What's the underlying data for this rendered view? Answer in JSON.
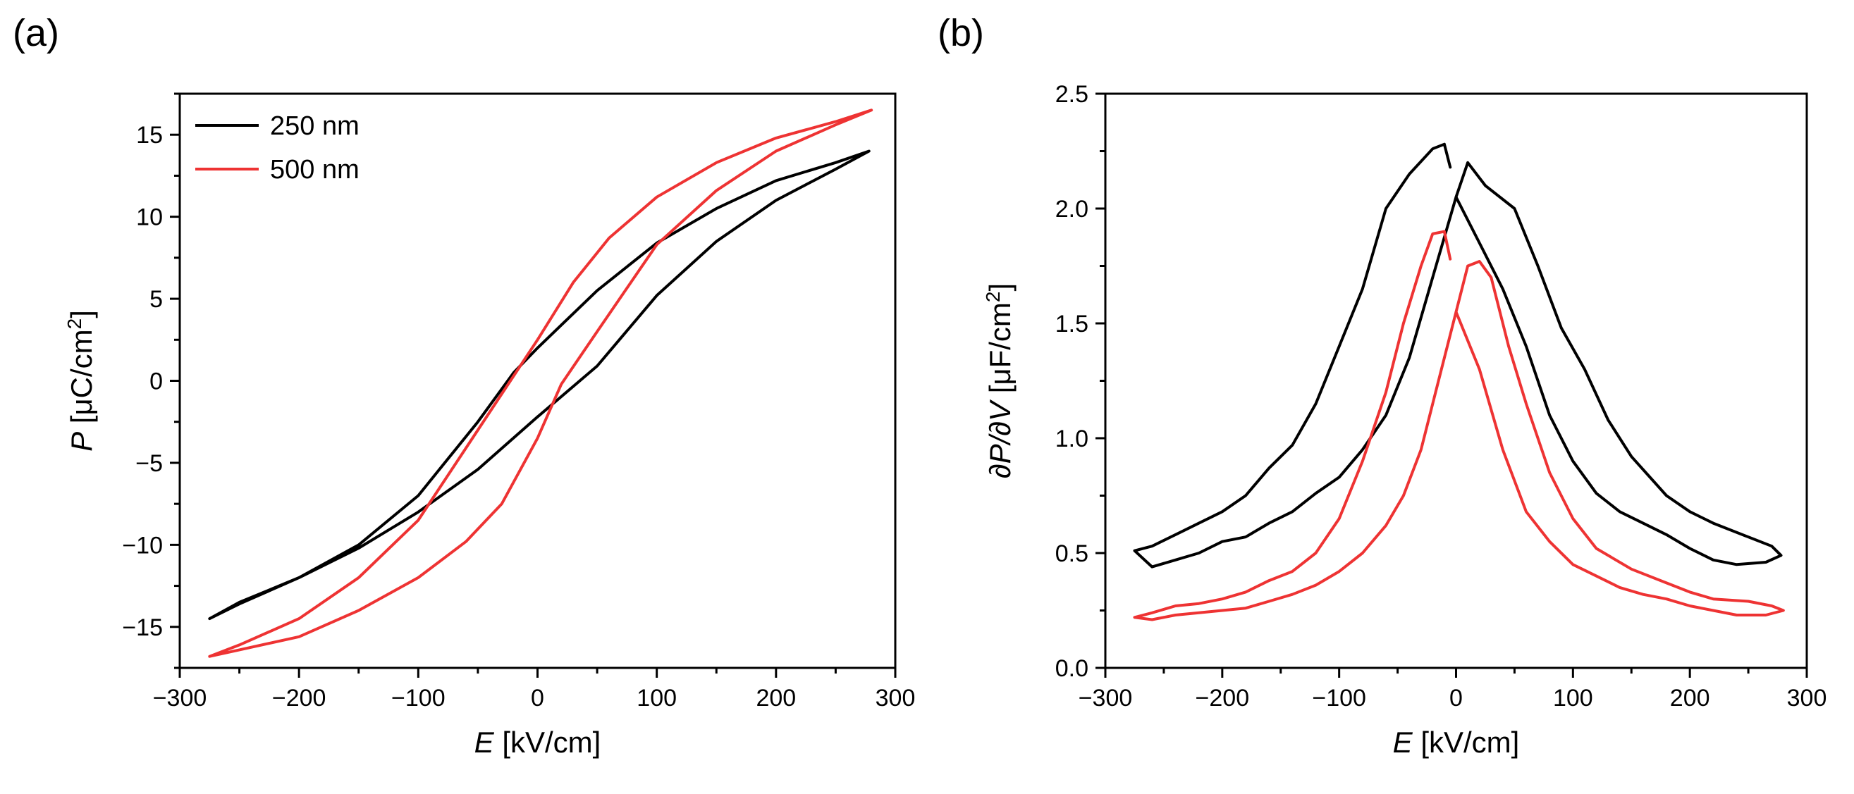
{
  "chart_data": [
    {
      "panel": "(a)",
      "type": "line",
      "xlabel_var": "E",
      "xlabel_unit": " [kV/cm]",
      "ylabel_var": "P",
      "ylabel_unit_pre": " [μC/cm",
      "ylabel_unit_sup": "2",
      "ylabel_unit_post": "]",
      "xlim": [
        -300,
        300
      ],
      "ylim": [
        -17.5,
        17.5
      ],
      "xticks": [
        -300,
        -200,
        -100,
        0,
        100,
        200,
        300
      ],
      "yticks": [
        -15,
        -10,
        -5,
        0,
        5,
        10,
        15
      ],
      "legend_position": "top-left",
      "series": [
        {
          "name": "250 nm",
          "color": "#000000",
          "x": [
            0,
            20,
            50,
            100,
            150,
            200,
            250,
            278,
            250,
            200,
            150,
            100,
            50,
            0,
            -50,
            -100,
            -150,
            -200,
            -250,
            -275,
            -250,
            -200,
            -150,
            -100,
            -50,
            -20,
            0
          ],
          "y": [
            2.0,
            3.4,
            5.5,
            8.4,
            10.5,
            12.2,
            13.3,
            14.0,
            12.9,
            11.0,
            8.5,
            5.2,
            0.9,
            -2.2,
            -5.4,
            -8.0,
            -10.2,
            -12.0,
            -13.6,
            -14.5,
            -13.5,
            -12.0,
            -10.0,
            -7.0,
            -2.5,
            0.5,
            2.0
          ]
        },
        {
          "name": "500 nm",
          "color": "#ee3333",
          "x": [
            0,
            30,
            60,
            100,
            150,
            200,
            250,
            280,
            250,
            200,
            150,
            100,
            50,
            20,
            0,
            -30,
            -60,
            -100,
            -150,
            -200,
            -250,
            -275,
            -250,
            -200,
            -150,
            -100,
            -50,
            -20,
            0
          ],
          "y": [
            2.5,
            6.0,
            8.7,
            11.2,
            13.3,
            14.8,
            15.8,
            16.5,
            15.6,
            14.0,
            11.6,
            8.3,
            3.0,
            -0.2,
            -3.5,
            -7.5,
            -9.8,
            -12.0,
            -14.0,
            -15.6,
            -16.4,
            -16.8,
            -16.1,
            -14.5,
            -12.0,
            -8.5,
            -3.0,
            0.3,
            2.5
          ]
        }
      ]
    },
    {
      "panel": "(b)",
      "type": "line",
      "xlabel_var": "E",
      "xlabel_unit": " [kV/cm]",
      "ylabel_var": "∂P/∂V",
      "ylabel_unit_pre": " [μF/cm",
      "ylabel_unit_sup": "2",
      "ylabel_unit_post": "]",
      "xlim": [
        -300,
        300
      ],
      "ylim": [
        0,
        2.5
      ],
      "xticks": [
        -300,
        -200,
        -100,
        0,
        100,
        200,
        300
      ],
      "yticks": [
        0.0,
        0.5,
        1.0,
        1.5,
        2.0,
        2.5
      ],
      "ytick_labels": [
        "0.0",
        "0.5",
        "1.0",
        "1.5",
        "2.0",
        "2.5"
      ],
      "series": [
        {
          "name": "250 nm",
          "color": "#000000",
          "x": [
            -5,
            -10,
            -20,
            -40,
            -60,
            -80,
            -100,
            -120,
            -140,
            -160,
            -180,
            -200,
            -220,
            -240,
            -260,
            -275,
            -260,
            -240,
            -220,
            -200,
            -180,
            -160,
            -140,
            -120,
            -100,
            -80,
            -60,
            -40,
            -20,
            0,
            10,
            25,
            50,
            70,
            90,
            110,
            130,
            150,
            180,
            200,
            220,
            250,
            270,
            278,
            265,
            240,
            220,
            200,
            180,
            160,
            140,
            120,
            100,
            80,
            60,
            40,
            20,
            0
          ],
          "y": [
            2.18,
            2.28,
            2.26,
            2.15,
            2.0,
            1.65,
            1.4,
            1.15,
            0.97,
            0.87,
            0.75,
            0.68,
            0.63,
            0.58,
            0.53,
            0.51,
            0.44,
            0.47,
            0.5,
            0.55,
            0.57,
            0.63,
            0.68,
            0.76,
            0.83,
            0.95,
            1.1,
            1.35,
            1.7,
            2.05,
            2.2,
            2.1,
            2.0,
            1.75,
            1.48,
            1.3,
            1.08,
            0.92,
            0.75,
            0.68,
            0.63,
            0.57,
            0.53,
            0.49,
            0.46,
            0.45,
            0.47,
            0.52,
            0.58,
            0.63,
            0.68,
            0.76,
            0.9,
            1.1,
            1.4,
            1.65,
            1.85,
            2.05
          ]
        },
        {
          "name": "500 nm",
          "color": "#ee3333",
          "x": [
            -5,
            -10,
            -20,
            -30,
            -45,
            -60,
            -80,
            -100,
            -120,
            -140,
            -160,
            -180,
            -200,
            -220,
            -240,
            -260,
            -275,
            -260,
            -240,
            -220,
            -200,
            -180,
            -160,
            -140,
            -120,
            -100,
            -80,
            -60,
            -45,
            -30,
            -15,
            0,
            10,
            20,
            30,
            45,
            60,
            80,
            100,
            120,
            150,
            180,
            200,
            220,
            250,
            270,
            280,
            265,
            240,
            220,
            200,
            180,
            160,
            140,
            120,
            100,
            80,
            60,
            40,
            20,
            0
          ],
          "y": [
            1.78,
            1.9,
            1.89,
            1.75,
            1.5,
            1.2,
            0.9,
            0.65,
            0.5,
            0.42,
            0.38,
            0.33,
            0.3,
            0.28,
            0.27,
            0.24,
            0.22,
            0.21,
            0.23,
            0.24,
            0.25,
            0.26,
            0.29,
            0.32,
            0.36,
            0.42,
            0.5,
            0.62,
            0.75,
            0.95,
            1.25,
            1.55,
            1.75,
            1.77,
            1.7,
            1.4,
            1.15,
            0.85,
            0.65,
            0.52,
            0.43,
            0.37,
            0.33,
            0.3,
            0.29,
            0.27,
            0.25,
            0.23,
            0.23,
            0.25,
            0.27,
            0.3,
            0.32,
            0.35,
            0.4,
            0.45,
            0.55,
            0.68,
            0.95,
            1.3,
            1.55
          ]
        }
      ]
    }
  ]
}
